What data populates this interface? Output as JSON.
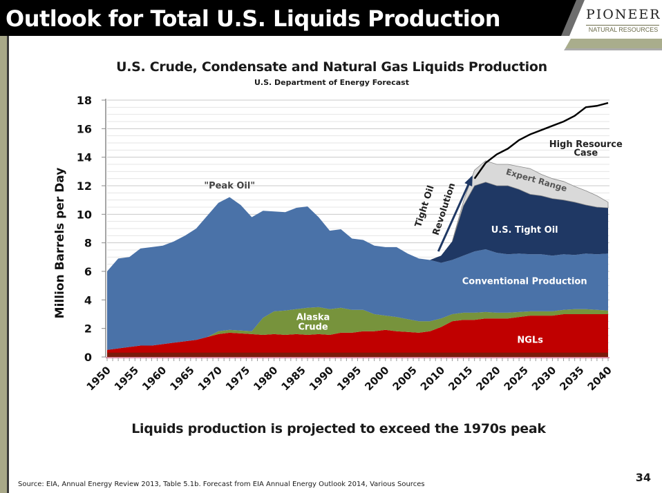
{
  "slide": {
    "title": "Outlook for Total U.S. Liquids Production",
    "logo": {
      "name": "PIONEER",
      "subtitle": "NATURAL RESOURCES"
    },
    "takeaway": "Liquids production is projected to exceed the 1970s peak",
    "source": "Source: EIA, Annual Energy Review 2013, Table 5.1b.  Forecast from EIA Annual Energy Outlook 2014, Various Sources",
    "page_number": "34"
  },
  "colors": {
    "ngl": "#c00000",
    "ngl_dark": "#7a1a0a",
    "alaska": "#77933c",
    "conventional": "#4a72a8",
    "tight_oil": "#1f3864",
    "expert_range": "#d9d9d9",
    "high_resource": "#000000"
  },
  "chart_data": {
    "type": "area",
    "stacked": true,
    "title": "U.S. Crude, Condensate and Natural Gas Liquids Production",
    "subtitle": "U.S. Department of Energy Forecast",
    "xlabel": "",
    "ylabel": "Million Barrels per Day",
    "xlim": [
      1950,
      2040
    ],
    "ylim": [
      0,
      18
    ],
    "y_ticks": [
      0,
      2,
      4,
      6,
      8,
      10,
      12,
      14,
      16,
      18
    ],
    "x_ticks": [
      1950,
      1955,
      1960,
      1965,
      1970,
      1975,
      1980,
      1985,
      1990,
      1995,
      2000,
      2005,
      2010,
      2015,
      2020,
      2025,
      2030,
      2035,
      2040
    ],
    "grid": "horizontal",
    "legend": "none (inline labels)",
    "x": [
      1950,
      1952,
      1954,
      1956,
      1958,
      1960,
      1962,
      1964,
      1966,
      1968,
      1970,
      1972,
      1974,
      1976,
      1978,
      1980,
      1982,
      1984,
      1986,
      1988,
      1990,
      1992,
      1994,
      1996,
      1998,
      2000,
      2002,
      2004,
      2006,
      2008,
      2010,
      2012,
      2014,
      2016,
      2018,
      2020,
      2022,
      2024,
      2026,
      2028,
      2030,
      2032,
      2034,
      2036,
      2038,
      2040
    ],
    "series": [
      {
        "name": "NGLs",
        "values": [
          0.5,
          0.6,
          0.7,
          0.8,
          0.8,
          0.9,
          1.0,
          1.1,
          1.2,
          1.4,
          1.6,
          1.7,
          1.65,
          1.6,
          1.55,
          1.6,
          1.55,
          1.6,
          1.55,
          1.6,
          1.55,
          1.7,
          1.7,
          1.8,
          1.8,
          1.9,
          1.8,
          1.75,
          1.7,
          1.8,
          2.1,
          2.5,
          2.6,
          2.6,
          2.7,
          2.7,
          2.7,
          2.8,
          2.9,
          2.9,
          2.9,
          3.0,
          3.0,
          3.0,
          3.0,
          3.0
        ]
      },
      {
        "name": "Alaska Crude",
        "values": [
          0,
          0,
          0,
          0,
          0,
          0,
          0,
          0,
          0,
          0,
          0.2,
          0.2,
          0.2,
          0.2,
          1.2,
          1.6,
          1.7,
          1.75,
          1.9,
          1.9,
          1.8,
          1.75,
          1.6,
          1.5,
          1.2,
          1.0,
          1.0,
          0.9,
          0.8,
          0.7,
          0.6,
          0.5,
          0.5,
          0.5,
          0.45,
          0.4,
          0.4,
          0.35,
          0.3,
          0.3,
          0.3,
          0.3,
          0.35,
          0.35,
          0.3,
          0.25
        ]
      },
      {
        "name": "Conventional Production",
        "values": [
          5.5,
          6.3,
          6.3,
          6.8,
          6.9,
          6.9,
          7.1,
          7.4,
          7.8,
          8.5,
          9.0,
          9.3,
          8.8,
          8.0,
          7.5,
          7.0,
          6.9,
          7.1,
          7.1,
          6.3,
          5.5,
          5.5,
          5.0,
          4.9,
          4.8,
          4.8,
          4.9,
          4.6,
          4.4,
          4.3,
          3.9,
          3.8,
          4.0,
          4.3,
          4.4,
          4.2,
          4.1,
          4.1,
          4.0,
          4.0,
          3.9,
          3.9,
          3.8,
          3.9,
          3.9,
          4.0
        ]
      },
      {
        "name": "U.S. Tight Oil",
        "values": [
          0,
          0,
          0,
          0,
          0,
          0,
          0,
          0,
          0,
          0,
          0,
          0,
          0,
          0,
          0,
          0,
          0,
          0,
          0,
          0,
          0,
          0,
          0,
          0,
          0,
          0,
          0,
          0,
          0,
          0,
          0.5,
          1.3,
          3.5,
          4.6,
          4.7,
          4.7,
          4.8,
          4.5,
          4.2,
          4.1,
          4.0,
          3.8,
          3.7,
          3.4,
          3.3,
          3.2
        ]
      },
      {
        "name": "Expert Range",
        "values": [
          0,
          0,
          0,
          0,
          0,
          0,
          0,
          0,
          0,
          0,
          0,
          0,
          0,
          0,
          0,
          0,
          0,
          0,
          0,
          0,
          0,
          0,
          0,
          0,
          0,
          0,
          0,
          0,
          0,
          0,
          0,
          0,
          0.3,
          1.1,
          1.5,
          1.5,
          1.5,
          1.6,
          1.8,
          1.5,
          1.4,
          1.3,
          1.1,
          1.0,
          0.8,
          0.4
        ]
      },
      {
        "name": "High Resource Case",
        "type": "line",
        "x": [
          2016,
          2018,
          2020,
          2022,
          2024,
          2026,
          2028,
          2030,
          2032,
          2034,
          2036,
          2038,
          2040
        ],
        "values": [
          12.5,
          13.6,
          14.2,
          14.6,
          15.2,
          15.6,
          15.9,
          16.2,
          16.5,
          16.9,
          17.5,
          17.6,
          17.8
        ]
      }
    ],
    "annotations": [
      {
        "text": "\"Peak Oil\"",
        "year": 1972,
        "value": 11.8
      },
      {
        "text": "Alaska",
        "year": 1987,
        "value": 2.6
      },
      {
        "text": "Crude",
        "year": 1987,
        "value": 1.9
      },
      {
        "text": "NGLs",
        "year": 2026,
        "value": 1.0
      },
      {
        "text": "Conventional Production",
        "year": 2025,
        "value": 5.1
      },
      {
        "text": "U.S. Tight Oil",
        "year": 2025,
        "value": 8.7
      },
      {
        "text": "Expert Range",
        "year": 2027,
        "value": 12.2
      },
      {
        "text": "High Resource",
        "year": 2036,
        "value": 14.7
      },
      {
        "text": "Case",
        "year": 2036,
        "value": 14.1
      },
      {
        "text": "Tight Oil",
        "year": 2008,
        "value": 10.5
      },
      {
        "text": "Revolution",
        "year": 2010,
        "value": 10.5
      }
    ]
  }
}
